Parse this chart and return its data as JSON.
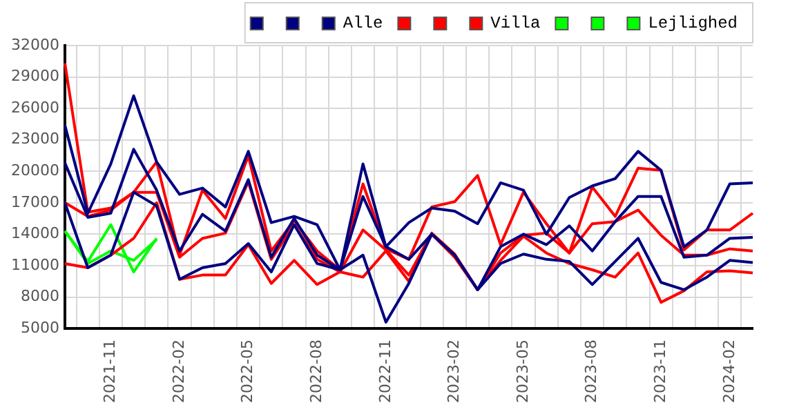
{
  "chart_data": {
    "type": "line",
    "categories": [
      null,
      null,
      "2021-11",
      null,
      null,
      "2022-02",
      null,
      null,
      "2022-05",
      null,
      null,
      "2022-08",
      null,
      null,
      "2022-11",
      null,
      null,
      "2023-02",
      null,
      null,
      "2023-05",
      null,
      null,
      "2023-08",
      null,
      null,
      "2023-11",
      null,
      null,
      "2024-02",
      null
    ],
    "series": [
      {
        "color": "#000080",
        "values": [
          24400,
          16000,
          20700,
          27200,
          20900,
          17800,
          18400,
          16600,
          21900,
          15100,
          15700,
          14900,
          10600,
          20700,
          12800,
          15100,
          16500,
          16200,
          15000,
          18900,
          18200,
          14000,
          17500,
          18600,
          19300,
          21900,
          20100,
          12800,
          14400,
          18800,
          18900
        ]
      },
      {
        "color": "#000080",
        "values": [
          20800,
          15600,
          16000,
          22100,
          18200,
          12400,
          15900,
          14300,
          19200,
          11800,
          15500,
          12000,
          10600,
          17600,
          12800,
          11600,
          14000,
          12000,
          8700,
          12800,
          14000,
          13000,
          14800,
          12400,
          15200,
          17600,
          17600,
          11800,
          12000,
          13600,
          13700
        ]
      },
      {
        "name": "Alle",
        "color": "#000080",
        "values": [
          17000,
          10800,
          12000,
          18000,
          16700,
          9700,
          10800,
          11200,
          13100,
          10400,
          14900,
          11200,
          10600,
          12000,
          5600,
          9300,
          14000,
          12000,
          8700,
          11200,
          12100,
          11600,
          11400,
          9200,
          11400,
          13600,
          9400,
          8700,
          9900,
          11500,
          11300
        ]
      },
      {
        "color": "#ff0000",
        "values": [
          30300,
          16100,
          16500,
          18000,
          20900,
          12000,
          18200,
          15500,
          21500,
          12400,
          15300,
          12400,
          10600,
          18800,
          12600,
          11600,
          16600,
          17100,
          19600,
          13000,
          18000,
          15000,
          12200,
          18500,
          15700,
          20300,
          20100,
          12500,
          14400,
          14400,
          16000
        ]
      },
      {
        "color": "#ff0000",
        "values": [
          17000,
          15700,
          16300,
          18000,
          18000,
          11800,
          13600,
          14100,
          19000,
          11600,
          14900,
          11600,
          10400,
          14400,
          12500,
          10100,
          14100,
          12100,
          8700,
          12200,
          13900,
          14100,
          12200,
          15000,
          15200,
          16300,
          13900,
          12000,
          12000,
          12600,
          12400
        ]
      },
      {
        "name": "Villa",
        "color": "#ff0000",
        "values": [
          11200,
          10800,
          12000,
          13600,
          17000,
          9700,
          10100,
          10100,
          13000,
          9300,
          11500,
          9200,
          10400,
          9900,
          12400,
          9500,
          14000,
          11800,
          8700,
          11500,
          13800,
          12200,
          11200,
          10600,
          9900,
          12200,
          7500,
          8600,
          10400,
          10500,
          10300
        ]
      },
      {
        "color": "#00ff00",
        "values": [
          14300,
          11400,
          14900,
          10400,
          13600,
          null,
          null,
          null,
          null,
          null,
          null,
          null,
          null,
          null,
          null,
          null,
          null,
          null,
          null,
          null,
          null,
          null,
          null,
          null,
          null,
          null,
          null,
          null,
          null,
          null,
          null
        ]
      },
      {
        "color": "#00ff00",
        "values": [
          14300,
          11200,
          12400,
          11500,
          13500,
          null,
          null,
          null,
          null,
          null,
          null,
          null,
          null,
          null,
          null,
          null,
          null,
          null,
          null,
          null,
          null,
          null,
          null,
          null,
          null,
          null,
          null,
          null,
          null,
          null,
          null
        ]
      },
      {
        "name": "Lejlighed",
        "color": "#00ff00",
        "values": [
          null,
          null,
          null,
          null,
          null,
          null,
          null,
          null,
          null,
          null,
          null,
          null,
          null,
          null,
          null,
          null,
          null,
          null,
          null,
          null,
          null,
          null,
          null,
          null,
          null,
          null,
          null,
          null,
          null,
          null,
          null
        ]
      }
    ],
    "ylim": [
      5000,
      32000
    ],
    "yticks": [
      5000,
      8000,
      11000,
      14000,
      17000,
      20000,
      23000,
      26000,
      29000,
      32000
    ],
    "grid": true,
    "legend": "top right"
  }
}
